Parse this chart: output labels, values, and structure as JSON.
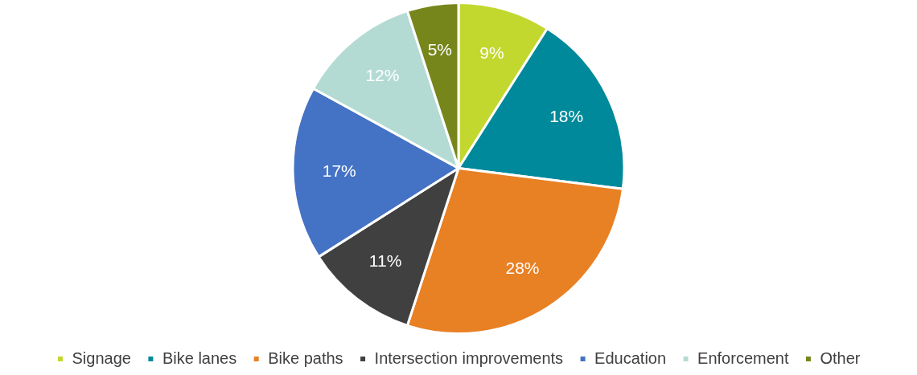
{
  "chart_data": {
    "type": "pie",
    "categories": [
      "Signage",
      "Bike lanes",
      "Bike paths",
      "Intersection improvements",
      "Education",
      "Enforcement",
      "Other"
    ],
    "values": [
      9,
      18,
      28,
      11,
      17,
      12,
      5
    ],
    "value_labels": [
      "9%",
      "18%",
      "28%",
      "11%",
      "17%",
      "12%",
      "5%"
    ],
    "colors": [
      "#c2d82e",
      "#00899a",
      "#e88024",
      "#404040",
      "#4472c4",
      "#b3dbd4",
      "#76861b"
    ],
    "legend": "bottom"
  }
}
